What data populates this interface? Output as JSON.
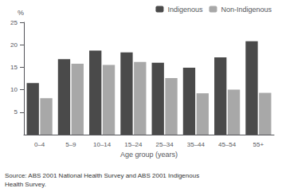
{
  "chart_data": {
    "type": "bar",
    "categories": [
      "0–4",
      "5–9",
      "10–14",
      "15–24",
      "25–34",
      "35–44",
      "45–54",
      "55+"
    ],
    "series": [
      {
        "name": "Indigenous",
        "color": "#4a4a4a",
        "values": [
          11.5,
          16.8,
          18.7,
          18.3,
          16.0,
          14.9,
          17.2,
          20.8
        ]
      },
      {
        "name": "Non-Indigenous",
        "color": "#a8a8a8",
        "values": [
          8.1,
          15.8,
          15.5,
          16.2,
          12.6,
          9.2,
          10.0,
          9.3
        ]
      }
    ],
    "xlabel": "Age group (years)",
    "ylabel": "%",
    "ylim": [
      0,
      25
    ],
    "yticks": [
      5,
      10,
      15,
      20,
      25
    ],
    "grid": false,
    "legend": "upper right",
    "annotation": "Source: ABS 2001 National Health Survey and ABS 2001 Indigenous\nHealth Survey."
  }
}
